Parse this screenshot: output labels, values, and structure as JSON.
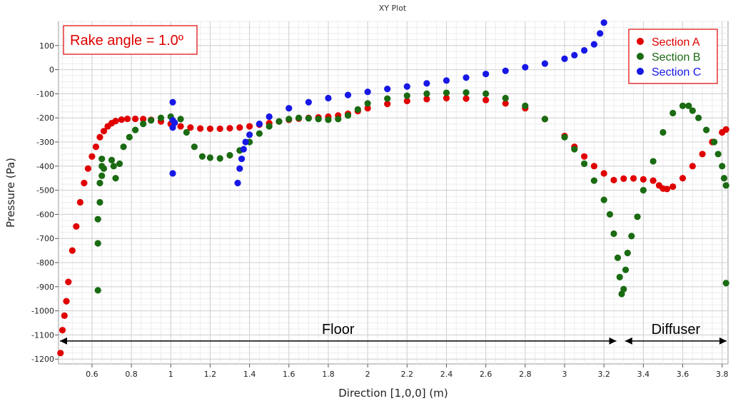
{
  "chart_data": {
    "type": "scatter",
    "title": "XY Plot",
    "xlabel": "Direction [1,0,0] (m)",
    "ylabel": "Pressure (Pa)",
    "xlim": [
      0.43,
      3.83
    ],
    "ylim": [
      -1220,
      200
    ],
    "x_ticks": [
      0.6,
      0.8,
      1,
      1.2,
      1.4,
      1.6,
      1.8,
      2,
      2.2,
      2.4,
      2.6,
      2.8,
      3,
      3.2,
      3.4,
      3.6,
      3.8
    ],
    "y_ticks": [
      100,
      0,
      -100,
      -200,
      -300,
      -400,
      -500,
      -600,
      -700,
      -800,
      -900,
      -1000,
      -1100,
      -1200
    ],
    "grid": true,
    "legend_position": "top-right",
    "series": [
      {
        "name": "Section A",
        "color": "#e00000",
        "x": [
          0.44,
          0.45,
          0.46,
          0.47,
          0.48,
          0.5,
          0.52,
          0.54,
          0.56,
          0.58,
          0.6,
          0.62,
          0.64,
          0.66,
          0.68,
          0.7,
          0.72,
          0.75,
          0.78,
          0.82,
          0.86,
          0.9,
          0.95,
          1.0,
          1.05,
          1.1,
          1.15,
          1.2,
          1.25,
          1.3,
          1.35,
          1.4,
          1.45,
          1.5,
          1.55,
          1.6,
          1.65,
          1.7,
          1.75,
          1.8,
          1.85,
          1.9,
          1.95,
          2.0,
          2.1,
          2.2,
          2.3,
          2.4,
          2.5,
          2.6,
          2.7,
          2.8,
          2.9,
          3.0,
          3.05,
          3.1,
          3.15,
          3.2,
          3.25,
          3.3,
          3.35,
          3.4,
          3.45,
          3.48,
          3.5,
          3.52,
          3.55,
          3.6,
          3.65,
          3.7,
          3.75,
          3.8,
          3.82
        ],
        "y": [
          -1175,
          -1080,
          -1020,
          -960,
          -880,
          -750,
          -650,
          -550,
          -470,
          -410,
          -360,
          -320,
          -280,
          -255,
          -235,
          -222,
          -213,
          -207,
          -204,
          -204,
          -205,
          -208,
          -215,
          -225,
          -235,
          -240,
          -244,
          -245,
          -245,
          -243,
          -240,
          -235,
          -228,
          -222,
          -215,
          -208,
          -203,
          -200,
          -198,
          -195,
          -190,
          -183,
          -172,
          -160,
          -142,
          -130,
          -122,
          -118,
          -120,
          -126,
          -140,
          -160,
          -205,
          -275,
          -320,
          -360,
          -400,
          -430,
          -458,
          -452,
          -451,
          -455,
          -460,
          -480,
          -493,
          -495,
          -485,
          -450,
          -400,
          -350,
          -300,
          -260,
          -248
        ]
      },
      {
        "name": "Section B",
        "color": "#1a6b12",
        "x": [
          0.63,
          0.63,
          0.63,
          0.64,
          0.64,
          0.65,
          0.65,
          0.65,
          0.66,
          0.7,
          0.71,
          0.72,
          0.74,
          0.76,
          0.79,
          0.82,
          0.86,
          0.9,
          0.95,
          1.0,
          1.05,
          1.08,
          1.12,
          1.16,
          1.2,
          1.25,
          1.3,
          1.35,
          1.4,
          1.45,
          1.5,
          1.55,
          1.6,
          1.65,
          1.7,
          1.75,
          1.8,
          1.85,
          1.9,
          1.95,
          2.0,
          2.1,
          2.2,
          2.3,
          2.4,
          2.5,
          2.6,
          2.7,
          2.8,
          2.9,
          3.0,
          3.05,
          3.1,
          3.15,
          3.2,
          3.23,
          3.25,
          3.27,
          3.28,
          3.29,
          3.3,
          3.31,
          3.32,
          3.34,
          3.37,
          3.4,
          3.45,
          3.5,
          3.55,
          3.6,
          3.63,
          3.65,
          3.68,
          3.72,
          3.76,
          3.78,
          3.8,
          3.81,
          3.82,
          3.82
        ],
        "y": [
          -915,
          -720,
          -620,
          -550,
          -470,
          -440,
          -400,
          -370,
          -410,
          -375,
          -400,
          -450,
          -390,
          -320,
          -280,
          -250,
          -225,
          -210,
          -200,
          -195,
          -205,
          -260,
          -320,
          -360,
          -365,
          -368,
          -355,
          -335,
          -300,
          -265,
          -235,
          -215,
          -205,
          -200,
          -202,
          -205,
          -208,
          -205,
          -190,
          -165,
          -140,
          -120,
          -108,
          -100,
          -96,
          -95,
          -100,
          -118,
          -150,
          -205,
          -280,
          -330,
          -390,
          -460,
          -540,
          -600,
          -680,
          -780,
          -860,
          -930,
          -910,
          -830,
          -760,
          -690,
          -610,
          -500,
          -380,
          -260,
          -180,
          -150,
          -150,
          -170,
          -200,
          -250,
          -300,
          -350,
          -400,
          -450,
          -480,
          -885
        ]
      },
      {
        "name": "Section C",
        "color": "#1717e6",
        "x": [
          1.01,
          1.01,
          1.01,
          1.01,
          1.02,
          1.34,
          1.35,
          1.36,
          1.37,
          1.38,
          1.4,
          1.45,
          1.5,
          1.6,
          1.7,
          1.8,
          1.9,
          2.0,
          2.1,
          2.2,
          2.3,
          2.4,
          2.5,
          2.6,
          2.7,
          2.8,
          2.9,
          3.0,
          3.05,
          3.1,
          3.15,
          3.18,
          3.2
        ],
        "y": [
          -135,
          -240,
          -210,
          -430,
          -220,
          -470,
          -410,
          -370,
          -330,
          -300,
          -270,
          -225,
          -195,
          -160,
          -135,
          -118,
          -105,
          -92,
          -80,
          -70,
          -57,
          -45,
          -33,
          -18,
          -5,
          10,
          25,
          45,
          60,
          80,
          105,
          150,
          195
        ]
      }
    ],
    "annotations": {
      "rake_angle": "Rake angle = 1.0º",
      "floor_label": "Floor",
      "diffuser_label": "Diffuser",
      "floor_range": [
        0.43,
        3.27
      ],
      "diffuser_range": [
        3.3,
        3.83
      ],
      "arrow_y": -1125
    }
  }
}
